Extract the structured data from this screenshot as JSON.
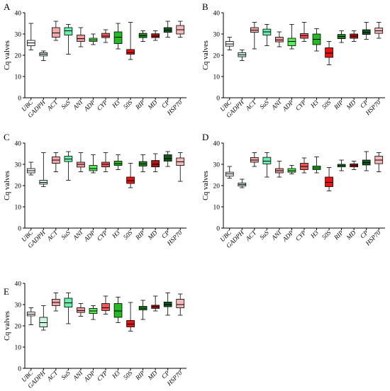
{
  "colors": {
    "UBC": "#ffffff",
    "GADPH": "#ccf5dd",
    "ACT": "#f4a9a9",
    "SuS": "#66f0a8",
    "ANI": "#f29a9a",
    "ADP": "#55ee55",
    "CYP": "#f25555",
    "H3": "#22bb22",
    "50S": "#ee1111",
    "RIP": "#1f8a1f",
    "MD": "#b31515",
    "CP": "#0f5a1c",
    "HSP70": "#f7b8b8"
  },
  "chart_data": [
    {
      "panel": "A",
      "type": "box",
      "ylabel": "Cq valves",
      "ylim": [
        0,
        40
      ],
      "yticks": [
        "0",
        "10",
        "20",
        "30",
        "40"
      ],
      "categories": [
        "UBC",
        "GADPH",
        "ACT",
        "SuS",
        "ANI",
        "ADP",
        "CYP",
        "H3",
        "50S",
        "RIP",
        "MD",
        "CP",
        "HSP70"
      ],
      "boxes": [
        {
          "min": 22.5,
          "q1": 24.5,
          "median": 25.8,
          "q3": 27,
          "max": 35
        },
        {
          "min": 17.5,
          "q1": 19.7,
          "median": 20.5,
          "q3": 21.2,
          "max": 22
        },
        {
          "min": 27,
          "q1": 28.5,
          "median": 30.5,
          "q3": 33,
          "max": 36
        },
        {
          "min": 20.5,
          "q1": 29.5,
          "median": 31.5,
          "q3": 33,
          "max": 34.5
        },
        {
          "min": 24,
          "q1": 26.5,
          "median": 27.8,
          "q3": 29.5,
          "max": 33
        },
        {
          "min": 25,
          "q1": 26.5,
          "median": 27.2,
          "q3": 28,
          "max": 30
        },
        {
          "min": 26,
          "q1": 28.3,
          "median": 29,
          "q3": 30.3,
          "max": 32
        },
        {
          "min": 23,
          "q1": 25.5,
          "median": 28.5,
          "q3": 31,
          "max": 35
        },
        {
          "min": 18,
          "q1": 20.5,
          "median": 21.3,
          "q3": 22.7,
          "max": 35.5
        },
        {
          "min": 26.5,
          "q1": 28.3,
          "median": 29.2,
          "q3": 30.3,
          "max": 31.5
        },
        {
          "min": 27,
          "q1": 28.3,
          "median": 29,
          "q3": 30.1,
          "max": 31.5
        },
        {
          "min": 28.5,
          "q1": 30.8,
          "median": 31.8,
          "q3": 33,
          "max": 36
        },
        {
          "min": 28.5,
          "q1": 30,
          "median": 32,
          "q3": 34,
          "max": 36
        }
      ]
    },
    {
      "panel": "B",
      "type": "box",
      "ylabel": "Cq valves",
      "ylim": [
        0,
        40
      ],
      "yticks": [
        "0",
        "10",
        "20",
        "30",
        "40"
      ],
      "categories": [
        "UBC",
        "GADPH",
        "ACT",
        "SuS",
        "ANI",
        "ADP",
        "CYP",
        "H3",
        "50S",
        "RIP",
        "MD",
        "CP",
        "HSP70"
      ],
      "boxes": [
        {
          "min": 22.5,
          "q1": 24.3,
          "median": 25.3,
          "q3": 26.5,
          "max": 28.5
        },
        {
          "min": 17.5,
          "q1": 19.3,
          "median": 20.2,
          "q3": 21.2,
          "max": 22.5
        },
        {
          "min": 23,
          "q1": 30.8,
          "median": 31.8,
          "q3": 33,
          "max": 35.5
        },
        {
          "min": 24.5,
          "q1": 29.5,
          "median": 31,
          "q3": 32.3,
          "max": 34.5
        },
        {
          "min": 24,
          "q1": 26.3,
          "median": 27.2,
          "q3": 28.5,
          "max": 31
        },
        {
          "min": 23,
          "q1": 24.5,
          "median": 26.5,
          "q3": 28,
          "max": 34.5
        },
        {
          "min": 26.5,
          "q1": 28,
          "median": 29.2,
          "q3": 30.2,
          "max": 35.5
        },
        {
          "min": 22,
          "q1": 25,
          "median": 27.5,
          "q3": 30,
          "max": 32.5
        },
        {
          "min": 15.5,
          "q1": 19,
          "median": 21,
          "q3": 23.5,
          "max": 26.5
        },
        {
          "min": 26,
          "q1": 27.8,
          "median": 28.8,
          "q3": 29.8,
          "max": 31.5
        },
        {
          "min": 26.5,
          "q1": 28,
          "median": 29,
          "q3": 30,
          "max": 31.5
        },
        {
          "min": 27.5,
          "q1": 29.8,
          "median": 30.8,
          "q3": 32,
          "max": 35.5
        },
        {
          "min": 28,
          "q1": 30.3,
          "median": 31.5,
          "q3": 32.8,
          "max": 35.5
        }
      ]
    },
    {
      "panel": "C",
      "type": "box",
      "ylabel": "Cq valves",
      "ylim": [
        0,
        40
      ],
      "yticks": [
        "0",
        "10",
        "20",
        "30",
        "40"
      ],
      "categories": [
        "UBC",
        "GADPH",
        "ACT",
        "SuS",
        "ANI",
        "ADP",
        "CYP",
        "H3",
        "50S",
        "RIP",
        "MD",
        "CP",
        "HSP70"
      ],
      "boxes": [
        {
          "min": 25,
          "q1": 26,
          "median": 27,
          "q3": 28,
          "max": 31
        },
        {
          "min": 19.5,
          "q1": 20.7,
          "median": 21.5,
          "q3": 22.5,
          "max": 35.5
        },
        {
          "min": 26.5,
          "q1": 30.5,
          "median": 32,
          "q3": 33.5,
          "max": 35.5
        },
        {
          "min": 22.5,
          "q1": 31.3,
          "median": 32.5,
          "q3": 33.8,
          "max": 36
        },
        {
          "min": 26.5,
          "q1": 28.7,
          "median": 30,
          "q3": 31,
          "max": 35.5
        },
        {
          "min": 26,
          "q1": 27,
          "median": 28,
          "q3": 29.5,
          "max": 34.5
        },
        {
          "min": 26.5,
          "q1": 28.8,
          "median": 30,
          "q3": 31,
          "max": 35.5
        },
        {
          "min": 27.5,
          "q1": 29.5,
          "median": 30.3,
          "q3": 31.5,
          "max": 34.5
        },
        {
          "min": 19,
          "q1": 21,
          "median": 22.3,
          "q3": 24,
          "max": 30.5
        },
        {
          "min": 26.5,
          "q1": 29.2,
          "median": 30.2,
          "q3": 31.3,
          "max": 34.5
        },
        {
          "min": 26.5,
          "q1": 28.8,
          "median": 30,
          "q3": 31.8,
          "max": 35
        },
        {
          "min": 29,
          "q1": 31.5,
          "median": 32.7,
          "q3": 34.5,
          "max": 36
        },
        {
          "min": 22,
          "q1": 29.5,
          "median": 31.2,
          "q3": 33,
          "max": 35.5
        }
      ]
    },
    {
      "panel": "D",
      "type": "box",
      "ylabel": "Cq valves",
      "ylim": [
        0,
        40
      ],
      "yticks": [
        "0",
        "10",
        "20",
        "30",
        "40"
      ],
      "categories": [
        "UBC",
        "GADPH",
        "ACT",
        "SuS",
        "ANI",
        "ADP",
        "CYP",
        "H3",
        "50S",
        "RIP",
        "MD",
        "CP",
        "HSP70"
      ],
      "boxes": [
        {
          "min": 23.5,
          "q1": 24.5,
          "median": 25.5,
          "q3": 26.3,
          "max": 29
        },
        {
          "min": 19,
          "q1": 19.8,
          "median": 20.5,
          "q3": 21.2,
          "max": 23
        },
        {
          "min": 29,
          "q1": 31,
          "median": 32,
          "q3": 33.2,
          "max": 35.5
        },
        {
          "min": 24,
          "q1": 30.2,
          "median": 31.5,
          "q3": 33.3,
          "max": 35.5
        },
        {
          "min": 24,
          "q1": 26,
          "median": 27,
          "q3": 28,
          "max": 31.5
        },
        {
          "min": 25.5,
          "q1": 26.3,
          "median": 27,
          "q3": 28,
          "max": 29.5
        },
        {
          "min": 26,
          "q1": 27.5,
          "median": 29,
          "q3": 30.5,
          "max": 33
        },
        {
          "min": 26,
          "q1": 27.5,
          "median": 28.3,
          "q3": 29.2,
          "max": 33.5
        },
        {
          "min": 17.5,
          "q1": 19.5,
          "median": 21.5,
          "q3": 24,
          "max": 28.5
        },
        {
          "min": 27,
          "q1": 28.8,
          "median": 29.5,
          "q3": 30,
          "max": 32
        },
        {
          "min": 27.5,
          "q1": 28.8,
          "median": 29.5,
          "q3": 30.2,
          "max": 31.5
        },
        {
          "min": 27,
          "q1": 29.7,
          "median": 30.8,
          "q3": 32,
          "max": 36
        },
        {
          "min": 26.5,
          "q1": 30.3,
          "median": 32,
          "q3": 33.8,
          "max": 35.5
        }
      ]
    },
    {
      "panel": "E",
      "type": "box",
      "ylabel": "Cq valves",
      "ylim": [
        0,
        40
      ],
      "yticks": [
        "0",
        "10",
        "20",
        "30",
        "40"
      ],
      "categories": [
        "UBC",
        "GADPH",
        "ACT",
        "SuS",
        "ANI",
        "ADP",
        "CYP",
        "H3",
        "50S",
        "RIP",
        "MD",
        "CP",
        "HSP70"
      ],
      "boxes": [
        {
          "min": 20.5,
          "q1": 24.7,
          "median": 25.5,
          "q3": 26.5,
          "max": 28.5
        },
        {
          "min": 18,
          "q1": 19.5,
          "median": 21.5,
          "q3": 24,
          "max": 29.5
        },
        {
          "min": 27,
          "q1": 29.5,
          "median": 31,
          "q3": 32.5,
          "max": 35.5
        },
        {
          "min": 21,
          "q1": 28.8,
          "median": 30.8,
          "q3": 33,
          "max": 35.5
        },
        {
          "min": 24.5,
          "q1": 26.3,
          "median": 27.2,
          "q3": 28.5,
          "max": 30.5
        },
        {
          "min": 23,
          "q1": 25.8,
          "median": 27,
          "q3": 28.2,
          "max": 29.5
        },
        {
          "min": 25.5,
          "q1": 27.2,
          "median": 28.5,
          "q3": 30.5,
          "max": 34
        },
        {
          "min": 21.5,
          "q1": 24,
          "median": 27,
          "q3": 30.5,
          "max": 33.5
        },
        {
          "min": 17.5,
          "q1": 19.5,
          "median": 20.8,
          "q3": 22.5,
          "max": 31
        },
        {
          "min": 23,
          "q1": 27.5,
          "median": 28.3,
          "q3": 29.2,
          "max": 32
        },
        {
          "min": 27,
          "q1": 28.2,
          "median": 29,
          "q3": 29.7,
          "max": 34
        },
        {
          "min": 25,
          "q1": 29,
          "median": 30,
          "q3": 31.2,
          "max": 35.5
        },
        {
          "min": 25,
          "q1": 28.5,
          "median": 30,
          "q3": 32.5,
          "max": 35
        }
      ]
    }
  ]
}
